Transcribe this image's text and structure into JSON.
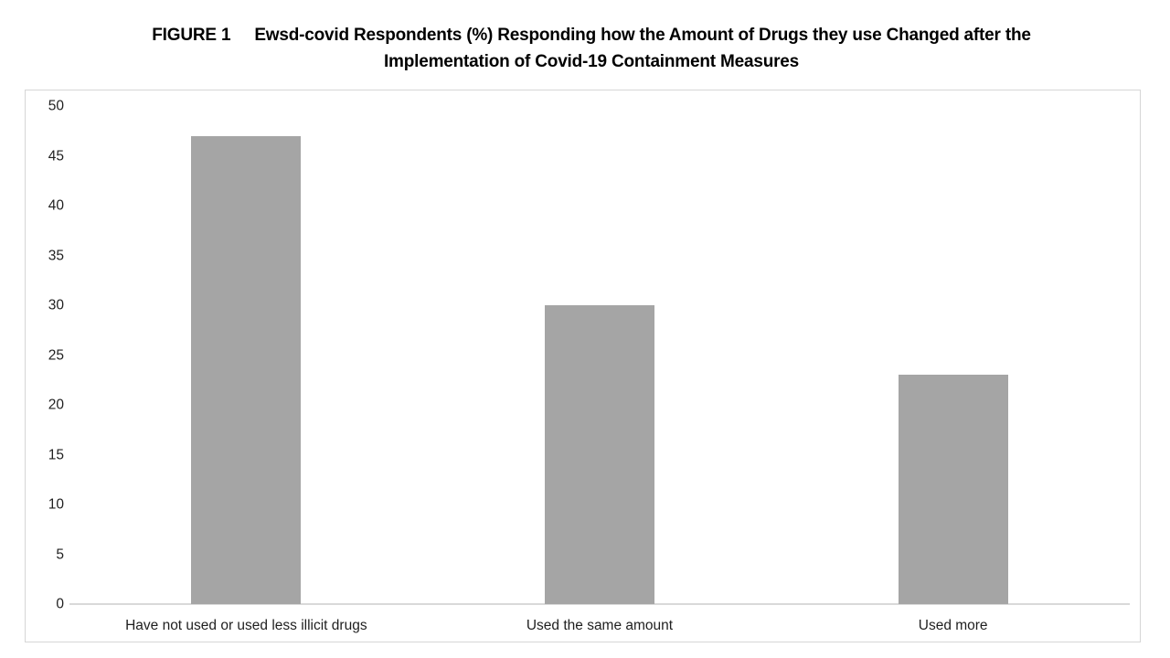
{
  "figure": {
    "label": "FIGURE 1",
    "title_line1": "Ewsd-covid Respondents (%) Responding how the Amount of Drugs they use Changed after the",
    "title_line2": "Implementation of Covid-19 Containment Measures"
  },
  "chart_data": {
    "type": "bar",
    "title": "FIGURE 1  Ewsd-covid Respondents (%) Responding how the Amount of Drugs they use Changed after the Implementation of Covid-19 Containment Measures",
    "categories": [
      "Have not used or used less illicit drugs",
      "Used the same amount",
      "Used more"
    ],
    "values": [
      47,
      30,
      23
    ],
    "xlabel": "",
    "ylabel": "",
    "ylim": [
      0,
      50
    ],
    "yticks": [
      0,
      5,
      10,
      15,
      20,
      25,
      30,
      35,
      40,
      45,
      50
    ],
    "grid": false,
    "legend": "none",
    "bar_color": "#a5a5a5",
    "axis_line_color": "#d9d9d9",
    "frame_border_color": "#d6d6d6",
    "text_color": "#1f1f1f"
  }
}
